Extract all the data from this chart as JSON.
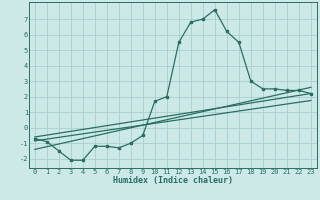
{
  "title": "",
  "xlabel": "Humidex (Indice chaleur)",
  "bg_color": "#cce9e8",
  "grid_color": "#aacfce",
  "line_color": "#2a6e63",
  "xlim": [
    -0.5,
    23.5
  ],
  "ylim": [
    -2.6,
    8.1
  ],
  "xticks": [
    0,
    1,
    2,
    3,
    4,
    5,
    6,
    7,
    8,
    9,
    10,
    11,
    12,
    13,
    14,
    15,
    16,
    17,
    18,
    19,
    20,
    21,
    22,
    23
  ],
  "yticks": [
    -2,
    -1,
    0,
    1,
    2,
    3,
    4,
    5,
    6,
    7
  ],
  "curve_x": [
    0,
    1,
    2,
    3,
    4,
    5,
    6,
    7,
    8,
    9,
    10,
    11,
    12,
    13,
    14,
    15,
    16,
    17,
    18,
    19,
    20,
    21,
    22,
    23
  ],
  "curve_y": [
    -0.7,
    -0.9,
    -1.5,
    -2.1,
    -2.1,
    -1.2,
    -1.2,
    -1.3,
    -1.0,
    -0.5,
    1.7,
    2.0,
    5.5,
    6.8,
    7.0,
    7.6,
    6.2,
    5.5,
    3.0,
    2.5,
    2.5,
    2.4,
    2.4,
    2.2
  ],
  "line1_x": [
    0,
    23
  ],
  "line1_y": [
    -0.6,
    2.2
  ],
  "line2_x": [
    0,
    23
  ],
  "line2_y": [
    -0.85,
    1.75
  ],
  "line3_x": [
    0,
    23
  ],
  "line3_y": [
    -1.4,
    2.6
  ]
}
